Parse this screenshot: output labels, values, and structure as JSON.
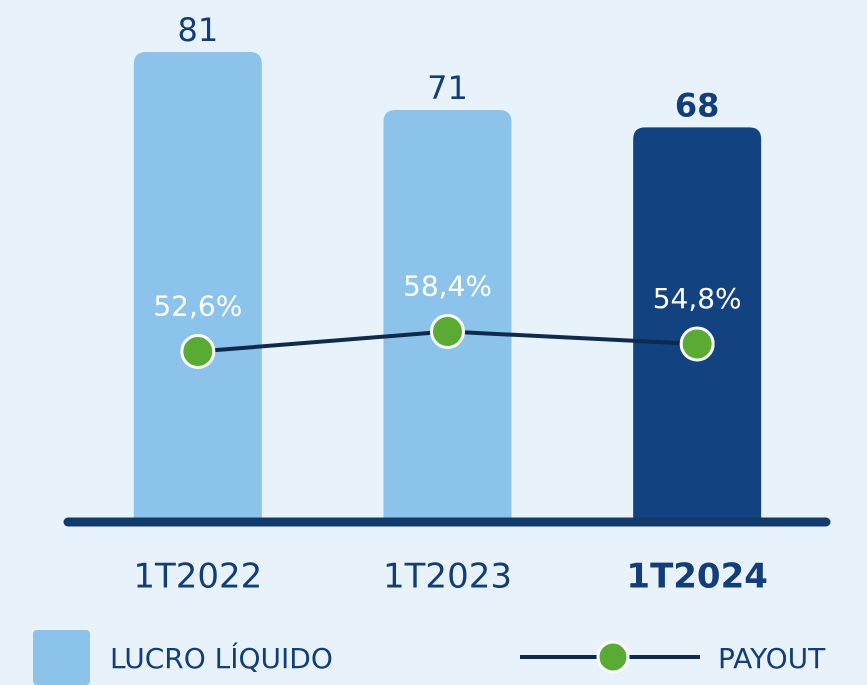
{
  "chart_data": {
    "type": "bar-line",
    "categories": [
      "1T2022",
      "1T2023",
      "1T2024"
    ],
    "highlight": 2,
    "series": [
      {
        "name": "LUCRO LÍQUIDO",
        "type": "bar",
        "color": "#8cc3ea",
        "highlight_color": "#12427f",
        "values": [
          81,
          71,
          68
        ]
      },
      {
        "name": "PAYOUT",
        "type": "line",
        "axis": "y2",
        "color": "#0e2a4c",
        "marker_color": "#5aab33",
        "values": [
          52.6,
          58.4,
          54.8
        ],
        "value_labels": [
          "52,6%",
          "58,4%",
          "54,8%"
        ]
      }
    ]
  }
}
